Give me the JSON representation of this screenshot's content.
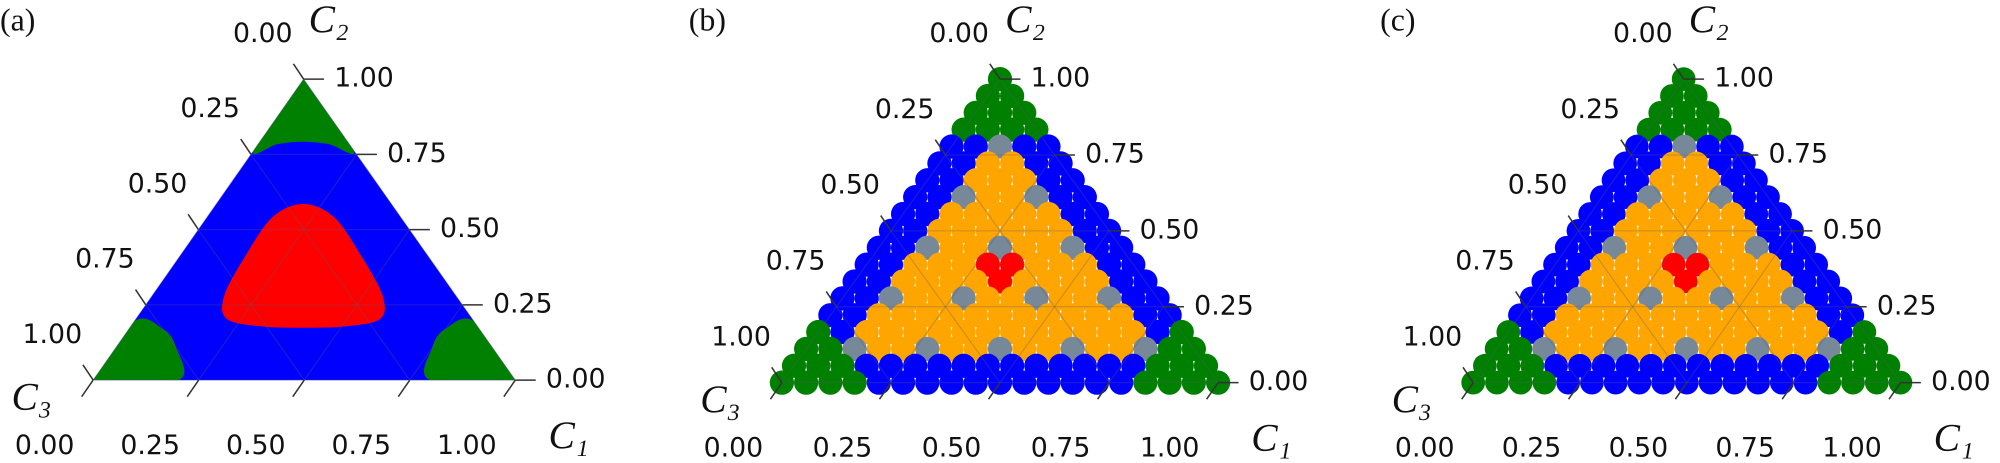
{
  "chart_data": [
    {
      "type": "ternary-region",
      "panel_label": "(a)",
      "background": "blue",
      "grid": true,
      "axes": {
        "c1": {
          "label": "C₁",
          "ticks": [
            {
              "value": 0,
              "label": "0.00"
            },
            {
              "value": 0.25,
              "label": "0.25"
            },
            {
              "value": 0.5,
              "label": "0.50"
            },
            {
              "value": 0.75,
              "label": "0.75"
            },
            {
              "value": 1,
              "label": "1.00"
            }
          ]
        },
        "c2": {
          "label": "C₂",
          "ticks": [
            {
              "value": 0,
              "label": "0.00"
            },
            {
              "value": 0.25,
              "label": "0.25"
            },
            {
              "value": 0.5,
              "label": "0.50"
            },
            {
              "value": 0.75,
              "label": "0.75"
            },
            {
              "value": 1,
              "label": "1.00"
            }
          ]
        },
        "c3": {
          "label": "C₃",
          "ticks": [
            {
              "value": 0,
              "label": "0.00"
            },
            {
              "value": 0.25,
              "label": "0.25"
            },
            {
              "value": 0.5,
              "label": "0.50"
            },
            {
              "value": 0.75,
              "label": "0.75"
            },
            {
              "value": 1,
              "label": "1.00"
            }
          ]
        }
      },
      "regions": [
        {
          "color": "green",
          "c1": [
            0,
            0,
            0.046,
            0.102,
            0.167,
            0.237
          ],
          "c2": [
            1,
            0.763,
            0.784,
            0.792,
            0.784,
            0.763
          ]
        },
        {
          "color": "green",
          "c1": [
            0,
            0,
            0.082,
            0.141,
            0.202
          ],
          "c2": [
            0,
            0.195,
            0.169,
            0.11,
            0
          ]
        },
        {
          "color": "green",
          "c1": [
            1,
            0.798,
            0.749,
            0.749,
            0.805
          ],
          "c2": [
            0,
            0,
            0.11,
            0.169,
            0.195
          ]
        },
        {
          "color": "red",
          "c1": [
            0.206,
            0.3,
            0.427,
            0.546,
            0.578,
            0.506,
            0.412,
            0.313,
            0.216,
            0.171,
            0.155,
            0.155
          ],
          "c2": [
            0.585,
            0.542,
            0.415,
            0.28,
            0.203,
            0.178,
            0.174,
            0.178,
            0.203,
            0.28,
            0.415,
            0.542
          ]
        }
      ]
    },
    {
      "type": "ternary-dots",
      "panel_label": "(b)",
      "grid": true,
      "axes": {
        "c1": {
          "label": "C₁",
          "ticks": [
            {
              "value": 0,
              "label": "0.00"
            },
            {
              "value": 0.25,
              "label": "0.25"
            },
            {
              "value": 0.5,
              "label": "0.50"
            },
            {
              "value": 0.75,
              "label": "0.75"
            },
            {
              "value": 1,
              "label": "1.00"
            }
          ]
        },
        "c2": {
          "label": "C₂",
          "ticks": [
            {
              "value": 0,
              "label": "0.00"
            },
            {
              "value": 0.25,
              "label": "0.25"
            },
            {
              "value": 0.5,
              "label": "0.50"
            },
            {
              "value": 0.75,
              "label": "0.75"
            },
            {
              "value": 1,
              "label": "1.00"
            }
          ]
        },
        "c3": {
          "label": "C₃",
          "ticks": [
            {
              "value": 0,
              "label": "0.00"
            },
            {
              "value": 0.25,
              "label": "0.25"
            },
            {
              "value": 0.5,
              "label": "0.50"
            },
            {
              "value": 0.75,
              "label": "0.75"
            },
            {
              "value": 1,
              "label": "1.00"
            }
          ]
        }
      },
      "rows": [
        [
          "green"
        ],
        [
          "green",
          "green"
        ],
        [
          "green",
          "green",
          "green"
        ],
        [
          "green",
          "green",
          "green",
          "green"
        ],
        [
          "blue",
          "blue",
          "lightslategray",
          "blue",
          "blue"
        ],
        [
          "blue",
          "blue",
          "orange",
          "orange",
          "blue",
          "blue"
        ],
        [
          "blue",
          "blue",
          "orange",
          "orange",
          "orange",
          "blue",
          "blue"
        ],
        [
          "blue",
          "blue",
          "lightslategray",
          "orange",
          "orange",
          "lightslategray",
          "blue",
          "blue"
        ],
        [
          "blue",
          "blue",
          "orange",
          "orange",
          "orange",
          "orange",
          "orange",
          "blue",
          "blue"
        ],
        [
          "blue",
          "blue",
          "orange",
          "orange",
          "orange",
          "orange",
          "orange",
          "orange",
          "blue",
          "blue"
        ],
        [
          "blue",
          "blue",
          "lightslategray",
          "orange",
          "orange",
          "lightslategray",
          "orange",
          "orange",
          "lightslategray",
          "blue",
          "blue"
        ],
        [
          "blue",
          "blue",
          "orange",
          "orange",
          "orange",
          "red",
          "red",
          "orange",
          "orange",
          "orange",
          "blue",
          "blue"
        ],
        [
          "blue",
          "blue",
          "orange",
          "orange",
          "orange",
          "orange",
          "red",
          "orange",
          "orange",
          "orange",
          "orange",
          "blue",
          "blue"
        ],
        [
          "blue",
          "blue",
          "lightslategray",
          "orange",
          "orange",
          "lightslategray",
          "orange",
          "orange",
          "lightslategray",
          "orange",
          "orange",
          "lightslategray",
          "blue",
          "blue"
        ],
        [
          "blue",
          "blue",
          "orange",
          "orange",
          "orange",
          "orange",
          "orange",
          "orange",
          "orange",
          "orange",
          "orange",
          "orange",
          "orange",
          "blue",
          "blue"
        ],
        [
          "green",
          "blue",
          "orange",
          "orange",
          "orange",
          "orange",
          "orange",
          "orange",
          "orange",
          "orange",
          "orange",
          "orange",
          "orange",
          "orange",
          "blue",
          "green"
        ],
        [
          "green",
          "green",
          "lightslategray",
          "orange",
          "orange",
          "lightslategray",
          "orange",
          "orange",
          "lightslategray",
          "orange",
          "orange",
          "lightslategray",
          "orange",
          "orange",
          "lightslategray",
          "green",
          "green"
        ],
        [
          "green",
          "green",
          "green",
          "blue",
          "blue",
          "blue",
          "blue",
          "blue",
          "blue",
          "blue",
          "blue",
          "blue",
          "blue",
          "blue",
          "blue",
          "green",
          "green",
          "green"
        ],
        [
          "green",
          "green",
          "green",
          "green",
          "blue",
          "blue",
          "blue",
          "blue",
          "blue",
          "blue",
          "blue",
          "blue",
          "blue",
          "blue",
          "blue",
          "green",
          "green",
          "green",
          "green"
        ]
      ]
    },
    {
      "type": "ternary-dots",
      "panel_label": "(c)",
      "grid": true,
      "axes": {
        "c1": {
          "label": "C₁",
          "ticks": [
            {
              "value": 0,
              "label": "0.00"
            },
            {
              "value": 0.25,
              "label": "0.25"
            },
            {
              "value": 0.5,
              "label": "0.50"
            },
            {
              "value": 0.75,
              "label": "0.75"
            },
            {
              "value": 1,
              "label": "1.00"
            }
          ]
        },
        "c2": {
          "label": "C₂",
          "ticks": [
            {
              "value": 0,
              "label": "0.00"
            },
            {
              "value": 0.25,
              "label": "0.25"
            },
            {
              "value": 0.5,
              "label": "0.50"
            },
            {
              "value": 0.75,
              "label": "0.75"
            },
            {
              "value": 1,
              "label": "1.00"
            }
          ]
        },
        "c3": {
          "label": "C₃",
          "ticks": [
            {
              "value": 0,
              "label": "0.00"
            },
            {
              "value": 0.25,
              "label": "0.25"
            },
            {
              "value": 0.5,
              "label": "0.50"
            },
            {
              "value": 0.75,
              "label": "0.75"
            },
            {
              "value": 1,
              "label": "1.00"
            }
          ]
        }
      },
      "rows": [
        [
          "green"
        ],
        [
          "green",
          "green"
        ],
        [
          "green",
          "green",
          "green"
        ],
        [
          "green",
          "green",
          "green",
          "green"
        ],
        [
          "blue",
          "blue",
          "lightslategray",
          "blue",
          "blue"
        ],
        [
          "blue",
          "blue",
          "orange",
          "orange",
          "blue",
          "blue"
        ],
        [
          "blue",
          "blue",
          "orange",
          "orange",
          "orange",
          "blue",
          "blue"
        ],
        [
          "blue",
          "blue",
          "lightslategray",
          "orange",
          "orange",
          "lightslategray",
          "blue",
          "blue"
        ],
        [
          "blue",
          "blue",
          "orange",
          "orange",
          "orange",
          "orange",
          "orange",
          "blue",
          "blue"
        ],
        [
          "blue",
          "blue",
          "orange",
          "orange",
          "orange",
          "orange",
          "orange",
          "orange",
          "blue",
          "blue"
        ],
        [
          "blue",
          "blue",
          "lightslategray",
          "orange",
          "orange",
          "lightslategray",
          "orange",
          "orange",
          "lightslategray",
          "blue",
          "blue"
        ],
        [
          "blue",
          "blue",
          "orange",
          "orange",
          "orange",
          "red",
          "red",
          "orange",
          "orange",
          "orange",
          "blue",
          "blue"
        ],
        [
          "blue",
          "blue",
          "orange",
          "orange",
          "orange",
          "orange",
          "red",
          "orange",
          "orange",
          "orange",
          "orange",
          "blue",
          "blue"
        ],
        [
          "blue",
          "blue",
          "lightslategray",
          "orange",
          "orange",
          "lightslategray",
          "orange",
          "orange",
          "lightslategray",
          "orange",
          "orange",
          "lightslategray",
          "blue",
          "blue"
        ],
        [
          "blue",
          "blue",
          "orange",
          "orange",
          "orange",
          "orange",
          "orange",
          "orange",
          "orange",
          "orange",
          "orange",
          "orange",
          "orange",
          "blue",
          "blue"
        ],
        [
          "green",
          "blue",
          "orange",
          "orange",
          "orange",
          "orange",
          "orange",
          "orange",
          "orange",
          "orange",
          "orange",
          "orange",
          "orange",
          "orange",
          "blue",
          "green"
        ],
        [
          "green",
          "green",
          "lightslategray",
          "orange",
          "orange",
          "lightslategray",
          "orange",
          "orange",
          "lightslategray",
          "orange",
          "orange",
          "lightslategray",
          "orange",
          "orange",
          "lightslategray",
          "green",
          "green"
        ],
        [
          "green",
          "green",
          "green",
          "blue",
          "blue",
          "blue",
          "blue",
          "blue",
          "blue",
          "blue",
          "blue",
          "blue",
          "blue",
          "blue",
          "blue",
          "green",
          "green",
          "green"
        ],
        [
          "green",
          "green",
          "green",
          "green",
          "blue",
          "blue",
          "blue",
          "blue",
          "blue",
          "blue",
          "blue",
          "blue",
          "blue",
          "blue",
          "blue",
          "green",
          "green",
          "green",
          "green"
        ]
      ]
    }
  ]
}
